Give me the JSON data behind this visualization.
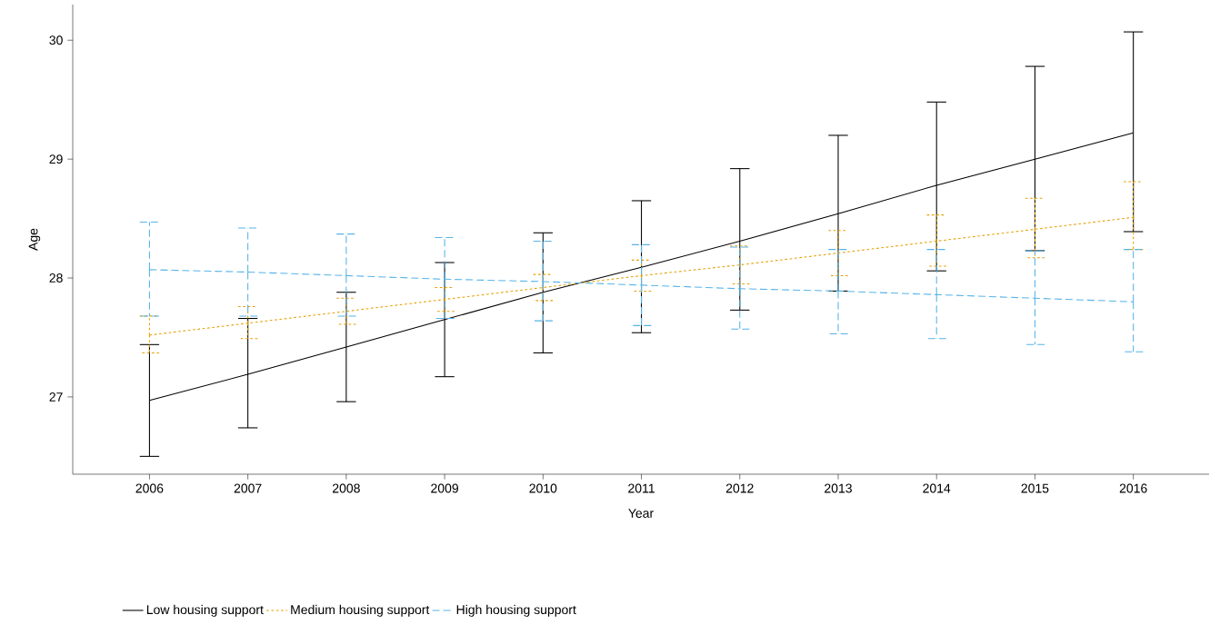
{
  "chart_data": {
    "type": "line",
    "xlabel": "Year",
    "ylabel": "Age",
    "categories": [
      "2006",
      "2007",
      "2008",
      "2009",
      "2010",
      "2011",
      "2012",
      "2013",
      "2014",
      "2015",
      "2016"
    ],
    "ylim": [
      26.35,
      30.3
    ],
    "yticks": [
      27,
      28,
      29,
      30
    ],
    "grid": false,
    "legend": "bottom",
    "marker": "none",
    "series": [
      {
        "name": "Low housing support",
        "color": "#000000",
        "line_style": "solid",
        "values": [
          26.97,
          27.19,
          27.42,
          27.65,
          27.88,
          28.09,
          28.31,
          28.54,
          28.78,
          29.0,
          29.22
        ],
        "errors": [
          [
            26.5,
            27.44
          ],
          [
            26.74,
            27.66
          ],
          [
            26.96,
            27.88
          ],
          [
            27.17,
            28.13
          ],
          [
            27.37,
            28.38
          ],
          [
            27.54,
            28.65
          ],
          [
            27.73,
            28.92
          ],
          [
            27.89,
            29.2
          ],
          [
            28.06,
            29.48
          ],
          [
            28.23,
            29.78
          ],
          [
            28.39,
            30.07
          ]
        ]
      },
      {
        "name": "Medium housing support",
        "color": "#e69f00",
        "line_style": "dotted",
        "values": [
          27.52,
          27.62,
          27.72,
          27.82,
          27.92,
          28.02,
          28.11,
          28.21,
          28.31,
          28.41,
          28.51
        ],
        "errors": [
          [
            27.37,
            27.68
          ],
          [
            27.49,
            27.76
          ],
          [
            27.61,
            27.83
          ],
          [
            27.72,
            27.92
          ],
          [
            27.81,
            28.03
          ],
          [
            27.89,
            28.15
          ],
          [
            27.95,
            28.27
          ],
          [
            28.02,
            28.4
          ],
          [
            28.1,
            28.53
          ],
          [
            28.17,
            28.67
          ],
          [
            28.24,
            28.81
          ]
        ]
      },
      {
        "name": "High housing support",
        "color": "#56b4e9",
        "line_style": "dashed",
        "values": [
          28.07,
          28.05,
          28.02,
          27.99,
          27.97,
          27.94,
          27.91,
          27.89,
          27.86,
          27.83,
          27.8
        ],
        "errors": [
          [
            27.68,
            28.47
          ],
          [
            27.68,
            28.42
          ],
          [
            27.68,
            28.37
          ],
          [
            27.66,
            28.34
          ],
          [
            27.64,
            28.31
          ],
          [
            27.6,
            28.28
          ],
          [
            27.57,
            28.26
          ],
          [
            27.53,
            28.24
          ],
          [
            27.49,
            28.24
          ],
          [
            27.44,
            28.23
          ],
          [
            27.38,
            28.24
          ]
        ]
      }
    ]
  }
}
